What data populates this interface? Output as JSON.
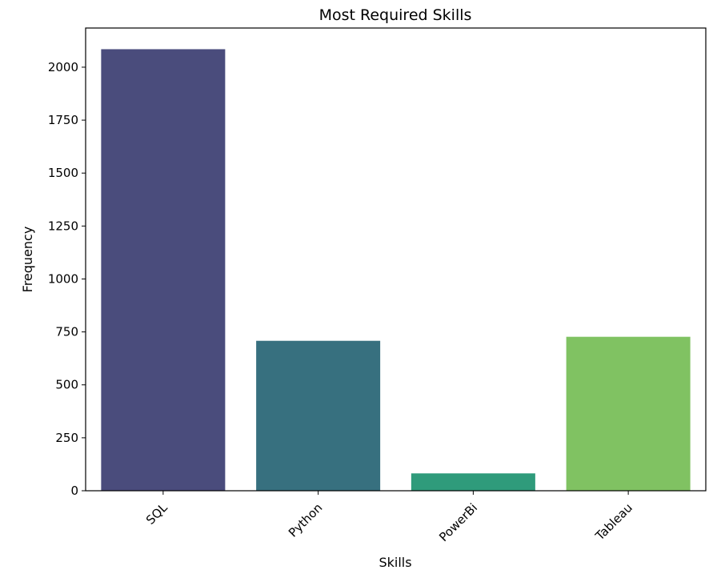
{
  "chart_data": {
    "type": "bar",
    "title": "Most Required Skills",
    "xlabel": "Skills",
    "ylabel": "Frequency",
    "categories": [
      "SQL",
      "Python",
      "PowerBi",
      "Tableau"
    ],
    "values": [
      2085,
      708,
      82,
      727
    ],
    "colors": [
      "#4a4c7c",
      "#37707f",
      "#2f9b7b",
      "#80c262"
    ],
    "ylim": [
      0,
      2185
    ],
    "yticks": [
      0,
      250,
      500,
      750,
      1000,
      1250,
      1500,
      1750,
      2000
    ],
    "ytick_labels": [
      "0",
      "250",
      "500",
      "750",
      "1000",
      "1250",
      "1500",
      "1750",
      "2000"
    ],
    "grid": false,
    "legend": "none"
  }
}
